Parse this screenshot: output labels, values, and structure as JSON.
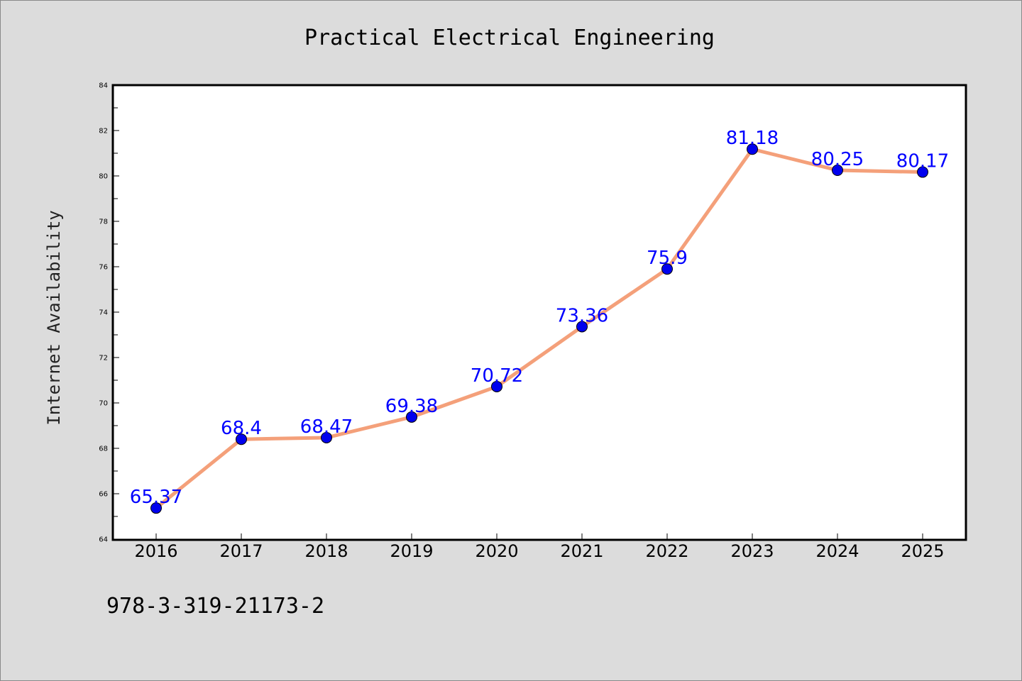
{
  "chart_data": {
    "type": "line",
    "title": "Practical Electrical Engineering",
    "ylabel": "Internet Availability",
    "xlabel": "",
    "categories": [
      "2016",
      "2017",
      "2018",
      "2019",
      "2020",
      "2021",
      "2022",
      "2023",
      "2024",
      "2025"
    ],
    "series": [
      {
        "values": [
          65.37,
          68.4,
          68.47,
          69.38,
          70.72,
          73.36,
          75.9,
          81.18,
          80.25,
          80.17
        ],
        "labels": [
          "65.37",
          "68.4",
          "68.47",
          "69.38",
          "70.72",
          "73.36",
          "75.9",
          "81.18",
          "80.25",
          "80.17"
        ],
        "line_color": "#f4a07a",
        "marker_color": "#0000ee"
      }
    ],
    "ylim": [
      64,
      84
    ],
    "yticks": [
      64,
      66,
      68,
      70,
      72,
      74,
      76,
      78,
      80,
      82,
      84
    ],
    "grid": false,
    "legend": "none",
    "label_color": "#0000ff"
  },
  "footer": {
    "isbn": "978-3-319-21173-2"
  },
  "colors": {
    "background": "#dcdcdc",
    "plot_background": "#ffffff"
  }
}
